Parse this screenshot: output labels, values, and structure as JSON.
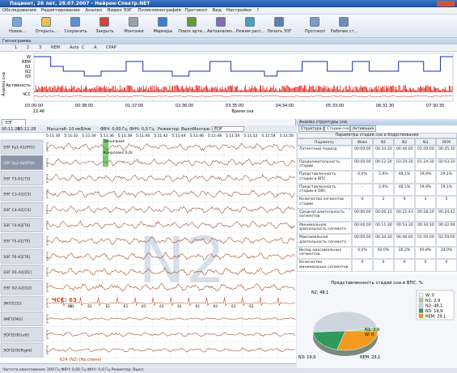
{
  "window": {
    "title": "Пациент, 26 лет, 28.07.2007 - Нейрон-Спектр.NET"
  },
  "menu": [
    "Обследование",
    "Редактирование",
    "Анализ",
    "Видео ЭЭГ",
    "Полисомнография",
    "Протокол",
    "Вид",
    "Настройки",
    "?"
  ],
  "toolbar": [
    "Новое...",
    "Открыть...",
    "Сохранить",
    "Закрыть",
    "Монтажи",
    "Маркеры",
    "Поиск арте...",
    "Автоанализ...",
    "Режим расс...",
    "Печать ЭЭГ",
    "Протокол",
    "Рабочие ст..."
  ],
  "hypnogram": {
    "title": "Гипнограмма",
    "tools": [
      "1",
      "2",
      "3",
      "REM",
      "Auto",
      "C",
      "A",
      "СРАР"
    ],
    "side_label": "Анализ сна",
    "stages": [
      "W",
      "REM",
      "N1",
      "N2",
      "N3"
    ],
    "activity": "Активность",
    "hr": "ЧСС",
    "times": [
      "03:00:00",
      "00:38:00",
      "01:37:00",
      "02:36:00",
      "03:35:00",
      "04:34:00",
      "05:33:00",
      "06:31:30",
      "07:30:30"
    ],
    "start_time": "22:46",
    "axis_label": "Время сна"
  },
  "eeg": {
    "tab": "ЭЭГ",
    "start": "00:11:26",
    "end": "05:11:28",
    "scale": "Масштаб: 10 мкВ/мм",
    "hpf": "ФВЧ: 0,00 Гц",
    "lpf": "ФНЧ: 0,0 Гц",
    "notch": "Режектор: Выкл.",
    "montage_label": "Монтаж:",
    "montage": "EDF",
    "times": [
      "5:11:30",
      "5:11:32",
      "5:11:34",
      "5:11:36",
      "5:11:38",
      "5:11:40",
      "5:11:42",
      "5:11:44",
      "5:11:46",
      "5:11:48",
      "5:11:50",
      "5:11:52",
      "5:11:54",
      "5:11:56"
    ],
    "channels": [
      "ЭЭГ Fp1-A1[FP1]",
      "ЭЭГ Fp2-A2[FP2]",
      "ЭЭГ T3-A1[T3]",
      "ЭЭГ C3-A1[C3]",
      "ЭЭГ C4-A2[C4]",
      "ЭЭГ T4-A2[T4]",
      "ЭЭГ T5-A1[T5]",
      "ЭЭГ T6-A2[T6]",
      "ЭЭГ O1-A1[O1]",
      "ЭЭГ O2-A2[O2]",
      "ЭКГ[ECG]",
      "ЭМГ[EMG]",
      "ЭОГ[EOGLeft]",
      "ЭОГ[EOGRight]"
    ],
    "stage": "N2",
    "marker": "Засыпание",
    "marker2": "Каналлекс 0,0с",
    "hr_label": "ЧСС: 63",
    "beats": [
      "64",
      "63",
      "63",
      "63",
      "63",
      "63",
      "63",
      "63",
      "63",
      "63",
      "63",
      "63"
    ],
    "epoch": "624 (N2) (На спине)"
  },
  "status": "Частота квантования: 200 Гц   ФВЧ: 0,00 Гц   ФНЧ: 0,0 Гц   Режектор: Выкл.",
  "analysis": {
    "title": "Анализ структуры сна",
    "tabs": [
      "Структура сна",
      "Стадии сна",
      "Активация"
    ],
    "table": {
      "title": "Параметры стадий сна и бодрствования",
      "columns": [
        "Параметр",
        "Wake",
        "N1",
        "N2",
        "N3",
        "REM"
      ],
      "rows": [
        [
          "Латентный период",
          "00:00:00",
          "00:34:30",
          "00:46:00",
          "01:00:00",
          "00:45:30"
        ],
        [
          "Продолжительность стадии",
          "00:00:00",
          "00:12:30",
          "03:29:30",
          "01:24:30",
          "02:03:30"
        ],
        [
          "Представленность стадии в ВПС",
          "0,0%",
          "2,9%",
          "48,1%",
          "19,9%",
          "29,1%"
        ],
        [
          "Представленность стадии в ОВС",
          "-",
          "2,9%",
          "48,1%",
          "19,9%",
          "29,1%"
        ],
        [
          "Количество сегментов стадии",
          "0",
          "2",
          "9",
          "3",
          "5"
        ],
        [
          "Средняя длительность сегментов",
          "00:00:00",
          "00:06:15",
          "00:22:43",
          "00:28:10",
          "00:24:42"
        ],
        [
          "Минимальная длительность сегмента",
          "00:00:00",
          "00:11:30",
          "00:53:30",
          "00:34:30",
          "00:42:00"
        ],
        [
          "Максимальная длительность сегмента",
          "00:00:00",
          "00:34:30",
          "06:46:00",
          "01:00:00",
          "02:59:00"
        ],
        [
          "Вклад максимальных сегментов",
          "0,0%",
          "92,0%",
          "26,2%",
          "40,8%",
          "34,0%"
        ],
        [
          "Количество минимальных сегментов",
          "0",
          "0",
          "0",
          "0",
          "0"
        ]
      ]
    }
  },
  "pie": {
    "title": "Представленность стадий сна в ВПС, %",
    "values": [
      0,
      2.9,
      48.1,
      19.9,
      29.1
    ],
    "value_labels": [
      "W: 0",
      "N1: 2,9",
      "N2: 48,1",
      "N3: 19,9",
      "REM: 29,1"
    ],
    "colors": [
      "#eef6ff",
      "#a6d87f",
      "#cdd6de",
      "#2f9a5c",
      "#f29a22"
    ]
  }
}
